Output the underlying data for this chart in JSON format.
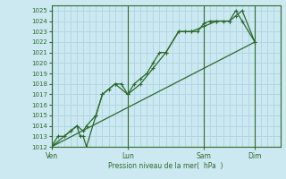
{
  "bg_color": "#cce8f0",
  "grid_color": "#b0d8e4",
  "line_color": "#2d6a2d",
  "marker_color": "#2d6a2d",
  "xlabel": "Pression niveau de la mer(  hPa  )",
  "ylim": [
    1012,
    1025.5
  ],
  "yticks": [
    1012,
    1013,
    1014,
    1015,
    1016,
    1017,
    1018,
    1019,
    1020,
    1021,
    1022,
    1023,
    1024,
    1025
  ],
  "xtick_labels": [
    "Ven",
    "Lun",
    "Sam",
    "Dim"
  ],
  "xtick_positions": [
    0,
    24,
    48,
    64
  ],
  "xlim": [
    0,
    72
  ],
  "vlines": [
    0,
    24,
    48,
    64
  ],
  "series1_x": [
    0,
    2,
    4,
    6,
    8,
    9,
    10,
    11,
    14,
    16,
    18,
    20,
    22,
    24,
    26,
    28,
    30,
    32,
    34,
    36,
    40,
    42,
    44,
    46,
    48,
    50,
    52,
    54,
    56,
    58,
    60,
    64
  ],
  "series1_y": [
    1012,
    1013,
    1013,
    1013.5,
    1014,
    1013,
    1013,
    1012,
    1015,
    1017,
    1017.5,
    1018,
    1018,
    1017,
    1018,
    1018.5,
    1019,
    1020,
    1021,
    1021,
    1023,
    1023,
    1023,
    1023,
    1023.8,
    1024,
    1024,
    1024,
    1024,
    1025,
    1024,
    1022
  ],
  "series2_x": [
    0,
    6,
    8,
    10,
    11,
    14,
    16,
    20,
    24,
    28,
    32,
    36,
    40,
    44,
    48,
    52,
    56,
    58,
    60,
    64
  ],
  "series2_y": [
    1012,
    1013.5,
    1014,
    1013.5,
    1014,
    1015,
    1017,
    1018,
    1017,
    1018,
    1019.5,
    1021,
    1023,
    1023,
    1023.5,
    1024,
    1024,
    1024.5,
    1025,
    1022
  ],
  "series3_x": [
    0,
    64
  ],
  "series3_y": [
    1012,
    1022
  ]
}
